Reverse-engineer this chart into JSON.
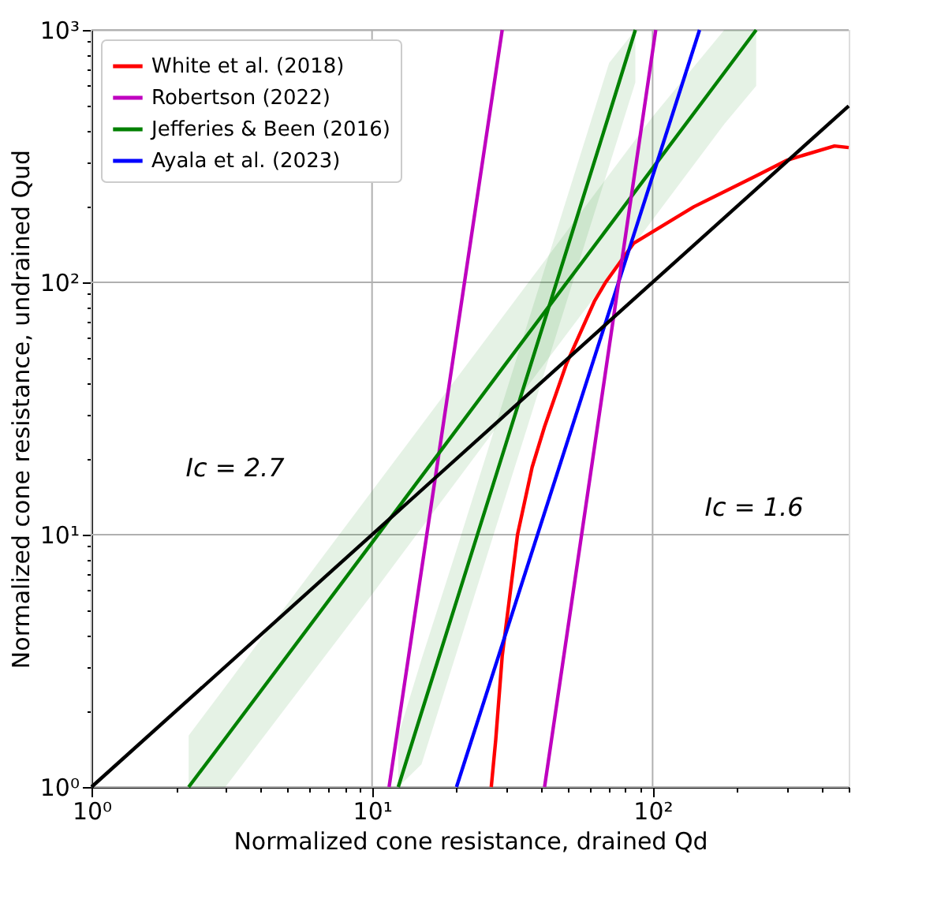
{
  "chart_data": {
    "type": "line",
    "xlabel": "Normalized cone resistance, drained Qd",
    "ylabel": "Normalized cone resistance, undrained Qud",
    "log": "xy",
    "grid": true,
    "legend": "top left",
    "line_style": "solid",
    "marker": "none",
    "xlim": [
      1,
      500
    ],
    "ylim": [
      1,
      1000
    ],
    "xticks": [
      {
        "value": 1,
        "label": "10⁰"
      },
      {
        "value": 2,
        "label": null
      },
      {
        "value": 3,
        "label": null
      },
      {
        "value": 4,
        "label": null
      },
      {
        "value": 5,
        "label": null
      },
      {
        "value": 6,
        "label": null
      },
      {
        "value": 7,
        "label": null
      },
      {
        "value": 8,
        "label": null
      },
      {
        "value": 9,
        "label": null
      },
      {
        "value": 10,
        "label": "10¹"
      },
      {
        "value": 20,
        "label": null
      },
      {
        "value": 30,
        "label": null
      },
      {
        "value": 40,
        "label": null
      },
      {
        "value": 50,
        "label": null
      },
      {
        "value": 60,
        "label": null
      },
      {
        "value": 70,
        "label": null
      },
      {
        "value": 80,
        "label": null
      },
      {
        "value": 90,
        "label": null
      },
      {
        "value": 100,
        "label": "10²"
      },
      {
        "value": 200,
        "label": null
      },
      {
        "value": 300,
        "label": null
      },
      {
        "value": 400,
        "label": null
      },
      {
        "value": 500,
        "label": null
      }
    ],
    "yticks": [
      {
        "value": 1,
        "label": "10⁰"
      },
      {
        "value": 2,
        "label": null
      },
      {
        "value": 3,
        "label": null
      },
      {
        "value": 4,
        "label": null
      },
      {
        "value": 5,
        "label": null
      },
      {
        "value": 6,
        "label": null
      },
      {
        "value": 7,
        "label": null
      },
      {
        "value": 8,
        "label": null
      },
      {
        "value": 9,
        "label": null
      },
      {
        "value": 10,
        "label": "10¹"
      },
      {
        "value": 20,
        "label": null
      },
      {
        "value": 30,
        "label": null
      },
      {
        "value": 40,
        "label": null
      },
      {
        "value": 50,
        "label": null
      },
      {
        "value": 60,
        "label": null
      },
      {
        "value": 70,
        "label": null
      },
      {
        "value": 80,
        "label": null
      },
      {
        "value": 90,
        "label": null
      },
      {
        "value": 100,
        "label": "10²"
      },
      {
        "value": 200,
        "label": null
      },
      {
        "value": 300,
        "label": null
      },
      {
        "value": 400,
        "label": null
      },
      {
        "value": 500,
        "label": null
      },
      {
        "value": 600,
        "label": null
      },
      {
        "value": 700,
        "label": null
      },
      {
        "value": 800,
        "label": null
      },
      {
        "value": 900,
        "label": null
      },
      {
        "value": 1000,
        "label": "10³"
      }
    ],
    "series": [
      {
        "name": "White et al. (2018)",
        "color": "#ff0000",
        "x": [
          26.6,
          27.6,
          29.1,
          33,
          37.2,
          41.2,
          49.3,
          62,
          68,
          85.7,
          140,
          234,
          302,
          445,
          500
        ],
        "values": [
          1,
          1.54,
          3.3,
          10,
          18.5,
          26.8,
          47.5,
          84,
          100,
          143,
          199,
          264,
          305,
          347,
          342
        ]
      },
      {
        "name": "Robertson (2022)",
        "color": "#bf00bf",
        "x": [
          11.5,
          29.1
        ],
        "values": [
          1,
          1000
        ]
      },
      {
        "color": "#bf00bf",
        "x": [
          41.2,
          102.6
        ],
        "values": [
          1,
          1000
        ]
      },
      {
        "name": "Jefferies & Been (2016)",
        "color": "#008000",
        "x": [
          2.22,
          3,
          10,
          30,
          100,
          180,
          234
        ],
        "values": [
          1,
          1.56,
          9.3,
          47.6,
          283,
          677,
          1000
        ],
        "lower": [
          1,
          1,
          5.8,
          29.8,
          177,
          423,
          600
        ],
        "upper": [
          1.6,
          2.5,
          14.9,
          76,
          453,
          1000,
          1000
        ]
      },
      {
        "color": "#008000",
        "x": [
          12.4,
          15,
          20,
          30,
          50,
          70,
          86.8
        ],
        "values": [
          1,
          1.97,
          5.45,
          22.9,
          140,
          463,
          1000
        ],
        "lower": [
          1,
          1.23,
          3.4,
          14.3,
          87.5,
          289,
          620
        ],
        "upper": [
          1.6,
          3.2,
          8.7,
          36.6,
          224,
          741,
          1000
        ]
      },
      {
        "name": "Ayala et al. (2023)",
        "color": "#0000ff",
        "x": [
          20,
          147
        ],
        "values": [
          1,
          1000
        ]
      },
      {
        "color": "#000000",
        "x": [
          1,
          500
        ],
        "values": [
          1,
          500
        ]
      }
    ],
    "annotations": [
      "Ic = 2.7",
      "Ic = 1.6"
    ]
  }
}
